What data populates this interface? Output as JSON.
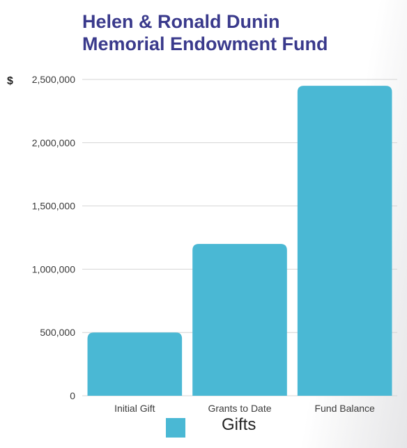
{
  "chart_data": {
    "type": "bar",
    "title_lines": [
      "Helen & Ronald Dunin",
      "Memorial Endowment Fund"
    ],
    "currency_symbol": "$",
    "categories": [
      "Initial Gift",
      "Grants to Date",
      "Fund Balance"
    ],
    "series": [
      {
        "name": "Gifts",
        "values": [
          500000,
          1200000,
          2450000
        ],
        "color": "#4ab8d4"
      }
    ],
    "yticks": [
      0,
      500000,
      1000000,
      1500000,
      2000000,
      2500000
    ],
    "ytick_labels": [
      "0",
      "500,000",
      "1,000,000",
      "1,500,000",
      "2,000,000",
      "2,500,000"
    ],
    "ylim": [
      0,
      2500000
    ],
    "xlabel": "",
    "ylabel": "",
    "grid": true,
    "legend_position": "bottom",
    "legend_label": "Gifts",
    "title_color": "#3a3a8c"
  }
}
